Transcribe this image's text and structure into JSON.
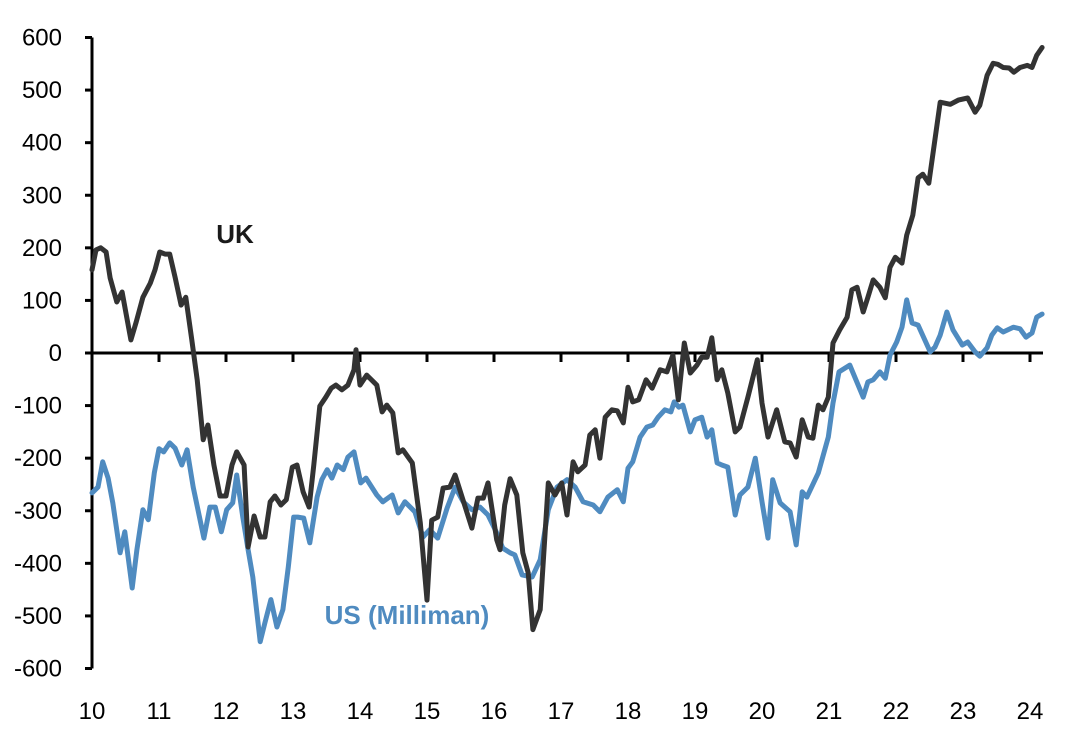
{
  "chart_data": {
    "type": "line",
    "title": "",
    "xlabel": "",
    "ylabel": "",
    "xlim": [
      10,
      24.2
    ],
    "ylim": [
      -600,
      600
    ],
    "grid": false,
    "legend": "inline labels",
    "x_tick_labels": [
      "10",
      "11",
      "12",
      "13",
      "14",
      "15",
      "16",
      "17",
      "18",
      "19",
      "20",
      "21",
      "22",
      "23",
      "24"
    ],
    "y_tick_labels": [
      "600",
      "500",
      "400",
      "300",
      "200",
      "100",
      "0",
      "-100",
      "-200",
      "-300",
      "-400",
      "-500",
      "-600"
    ],
    "series": [
      {
        "name": "UK",
        "color": "#333333",
        "points": [
          [
            10.0,
            158
          ],
          [
            10.06,
            196
          ],
          [
            10.13,
            200
          ],
          [
            10.21,
            192
          ],
          [
            10.27,
            143
          ],
          [
            10.37,
            97
          ],
          [
            10.45,
            116
          ],
          [
            10.58,
            25
          ],
          [
            10.66,
            59
          ],
          [
            10.76,
            106
          ],
          [
            10.87,
            133
          ],
          [
            10.94,
            158
          ],
          [
            11.01,
            192
          ],
          [
            11.09,
            188
          ],
          [
            11.16,
            188
          ],
          [
            11.24,
            144
          ],
          [
            11.33,
            91
          ],
          [
            11.4,
            106
          ],
          [
            11.49,
            25
          ],
          [
            11.57,
            -51
          ],
          [
            11.66,
            -165
          ],
          [
            11.73,
            -137
          ],
          [
            11.82,
            -213
          ],
          [
            11.91,
            -272
          ],
          [
            12.0,
            -272
          ],
          [
            12.09,
            -213
          ],
          [
            12.16,
            -188
          ],
          [
            12.27,
            -213
          ],
          [
            12.33,
            -369
          ],
          [
            12.42,
            -310
          ],
          [
            12.51,
            -350
          ],
          [
            12.58,
            -350
          ],
          [
            12.66,
            -283
          ],
          [
            12.73,
            -272
          ],
          [
            12.82,
            -289
          ],
          [
            12.9,
            -279
          ],
          [
            12.99,
            -217
          ],
          [
            13.06,
            -213
          ],
          [
            13.15,
            -264
          ],
          [
            13.24,
            -293
          ],
          [
            13.31,
            -213
          ],
          [
            13.4,
            -101
          ],
          [
            13.49,
            -84
          ],
          [
            13.57,
            -67
          ],
          [
            13.64,
            -61
          ],
          [
            13.73,
            -70
          ],
          [
            13.82,
            -61
          ],
          [
            13.91,
            -32
          ],
          [
            13.94,
            6
          ],
          [
            14.0,
            -61
          ],
          [
            14.1,
            -42
          ],
          [
            14.25,
            -61
          ],
          [
            14.33,
            -112
          ],
          [
            14.4,
            -99
          ],
          [
            14.49,
            -114
          ],
          [
            14.57,
            -190
          ],
          [
            14.64,
            -184
          ],
          [
            14.78,
            -209
          ],
          [
            14.9,
            -323
          ],
          [
            15.0,
            -470
          ],
          [
            15.07,
            -318
          ],
          [
            15.16,
            -312
          ],
          [
            15.24,
            -257
          ],
          [
            15.34,
            -255
          ],
          [
            15.42,
            -232
          ],
          [
            15.67,
            -333
          ],
          [
            15.76,
            -276
          ],
          [
            15.84,
            -276
          ],
          [
            15.91,
            -247
          ],
          [
            16.04,
            -355
          ],
          [
            16.09,
            -374
          ],
          [
            16.16,
            -289
          ],
          [
            16.24,
            -239
          ],
          [
            16.34,
            -270
          ],
          [
            16.43,
            -380
          ],
          [
            16.51,
            -418
          ],
          [
            16.58,
            -526
          ],
          [
            16.69,
            -488
          ],
          [
            16.81,
            -247
          ],
          [
            16.91,
            -270
          ],
          [
            17.01,
            -247
          ],
          [
            17.09,
            -308
          ],
          [
            17.18,
            -207
          ],
          [
            17.25,
            -226
          ],
          [
            17.36,
            -213
          ],
          [
            17.43,
            -156
          ],
          [
            17.51,
            -146
          ],
          [
            17.58,
            -200
          ],
          [
            17.66,
            -122
          ],
          [
            17.76,
            -108
          ],
          [
            17.84,
            -110
          ],
          [
            17.93,
            -133
          ],
          [
            18.0,
            -65
          ],
          [
            18.07,
            -93
          ],
          [
            18.16,
            -89
          ],
          [
            18.27,
            -51
          ],
          [
            18.36,
            -67
          ],
          [
            18.48,
            -32
          ],
          [
            18.58,
            -36
          ],
          [
            18.67,
            -4
          ],
          [
            18.75,
            -89
          ],
          [
            18.84,
            19
          ],
          [
            18.93,
            -38
          ],
          [
            19.03,
            -23
          ],
          [
            19.1,
            -8
          ],
          [
            19.18,
            -8
          ],
          [
            19.25,
            29
          ],
          [
            19.33,
            -51
          ],
          [
            19.4,
            -32
          ],
          [
            19.49,
            -76
          ],
          [
            19.6,
            -150
          ],
          [
            19.67,
            -141
          ],
          [
            19.79,
            -84
          ],
          [
            19.93,
            -13
          ],
          [
            20.0,
            -95
          ],
          [
            20.09,
            -160
          ],
          [
            20.22,
            -108
          ],
          [
            20.34,
            -169
          ],
          [
            20.42,
            -171
          ],
          [
            20.51,
            -198
          ],
          [
            20.6,
            -127
          ],
          [
            20.69,
            -160
          ],
          [
            20.76,
            -162
          ],
          [
            20.84,
            -99
          ],
          [
            20.91,
            -108
          ],
          [
            20.99,
            -84
          ],
          [
            21.06,
            19
          ],
          [
            21.16,
            44
          ],
          [
            21.27,
            68
          ],
          [
            21.34,
            120
          ],
          [
            21.42,
            125
          ],
          [
            21.51,
            78
          ],
          [
            21.58,
            106
          ],
          [
            21.66,
            139
          ],
          [
            21.76,
            125
          ],
          [
            21.84,
            105
          ],
          [
            21.91,
            163
          ],
          [
            21.99,
            182
          ],
          [
            22.09,
            171
          ],
          [
            22.16,
            224
          ],
          [
            22.25,
            262
          ],
          [
            22.33,
            333
          ],
          [
            22.4,
            340
          ],
          [
            22.49,
            323
          ],
          [
            22.66,
            477
          ],
          [
            22.81,
            473
          ],
          [
            22.93,
            481
          ],
          [
            23.07,
            485
          ],
          [
            23.18,
            458
          ],
          [
            23.25,
            471
          ],
          [
            23.36,
            528
          ],
          [
            23.45,
            551
          ],
          [
            23.52,
            549
          ],
          [
            23.6,
            543
          ],
          [
            23.69,
            542
          ],
          [
            23.76,
            534
          ],
          [
            23.85,
            543
          ],
          [
            23.96,
            547
          ],
          [
            24.03,
            543
          ],
          [
            24.1,
            566
          ],
          [
            24.18,
            581
          ]
        ]
      },
      {
        "name": "US (Milliman)",
        "color": "#4f8bc0",
        "points": [
          [
            10.0,
            -266
          ],
          [
            10.09,
            -255
          ],
          [
            10.16,
            -207
          ],
          [
            10.24,
            -238
          ],
          [
            10.31,
            -285
          ],
          [
            10.42,
            -380
          ],
          [
            10.49,
            -340
          ],
          [
            10.6,
            -447
          ],
          [
            10.67,
            -374
          ],
          [
            10.76,
            -298
          ],
          [
            10.84,
            -317
          ],
          [
            10.93,
            -228
          ],
          [
            11.0,
            -182
          ],
          [
            11.07,
            -188
          ],
          [
            11.16,
            -171
          ],
          [
            11.24,
            -181
          ],
          [
            11.34,
            -213
          ],
          [
            11.42,
            -184
          ],
          [
            11.51,
            -255
          ],
          [
            11.67,
            -352
          ],
          [
            11.76,
            -293
          ],
          [
            11.84,
            -293
          ],
          [
            11.93,
            -340
          ],
          [
            12.01,
            -298
          ],
          [
            12.1,
            -285
          ],
          [
            12.16,
            -232
          ],
          [
            12.25,
            -312
          ],
          [
            12.33,
            -374
          ],
          [
            12.4,
            -426
          ],
          [
            12.51,
            -549
          ],
          [
            12.58,
            -513
          ],
          [
            12.67,
            -469
          ],
          [
            12.76,
            -521
          ],
          [
            12.85,
            -488
          ],
          [
            12.93,
            -407
          ],
          [
            13.01,
            -312
          ],
          [
            13.07,
            -312
          ],
          [
            13.16,
            -314
          ],
          [
            13.25,
            -361
          ],
          [
            13.36,
            -274
          ],
          [
            13.43,
            -241
          ],
          [
            13.51,
            -222
          ],
          [
            13.58,
            -238
          ],
          [
            13.66,
            -213
          ],
          [
            13.75,
            -222
          ],
          [
            13.82,
            -198
          ],
          [
            13.91,
            -188
          ],
          [
            14.01,
            -247
          ],
          [
            14.09,
            -238
          ],
          [
            14.25,
            -270
          ],
          [
            14.34,
            -283
          ],
          [
            14.48,
            -270
          ],
          [
            14.57,
            -304
          ],
          [
            14.67,
            -283
          ],
          [
            14.82,
            -302
          ],
          [
            14.94,
            -350
          ],
          [
            15.04,
            -336
          ],
          [
            15.16,
            -352
          ],
          [
            15.3,
            -295
          ],
          [
            15.42,
            -255
          ],
          [
            15.54,
            -283
          ],
          [
            15.67,
            -298
          ],
          [
            15.79,
            -293
          ],
          [
            15.91,
            -308
          ],
          [
            16.04,
            -342
          ],
          [
            16.13,
            -371
          ],
          [
            16.24,
            -380
          ],
          [
            16.31,
            -384
          ],
          [
            16.42,
            -422
          ],
          [
            16.57,
            -426
          ],
          [
            16.69,
            -393
          ],
          [
            16.81,
            -298
          ],
          [
            16.94,
            -255
          ],
          [
            17.09,
            -241
          ],
          [
            17.21,
            -255
          ],
          [
            17.33,
            -283
          ],
          [
            17.48,
            -289
          ],
          [
            17.58,
            -302
          ],
          [
            17.7,
            -274
          ],
          [
            17.84,
            -260
          ],
          [
            17.93,
            -283
          ],
          [
            18.0,
            -219
          ],
          [
            18.07,
            -207
          ],
          [
            18.18,
            -160
          ],
          [
            18.28,
            -141
          ],
          [
            18.37,
            -137
          ],
          [
            18.45,
            -122
          ],
          [
            18.55,
            -108
          ],
          [
            18.64,
            -112
          ],
          [
            18.69,
            -93
          ],
          [
            18.76,
            -103
          ],
          [
            18.82,
            -99
          ],
          [
            18.93,
            -150
          ],
          [
            19.0,
            -127
          ],
          [
            19.1,
            -122
          ],
          [
            19.18,
            -160
          ],
          [
            19.25,
            -146
          ],
          [
            19.33,
            -209
          ],
          [
            19.4,
            -213
          ],
          [
            19.49,
            -217
          ],
          [
            19.6,
            -308
          ],
          [
            19.67,
            -270
          ],
          [
            19.79,
            -255
          ],
          [
            19.9,
            -200
          ],
          [
            20.0,
            -283
          ],
          [
            20.09,
            -352
          ],
          [
            20.16,
            -241
          ],
          [
            20.27,
            -285
          ],
          [
            20.42,
            -302
          ],
          [
            20.51,
            -365
          ],
          [
            20.6,
            -264
          ],
          [
            20.67,
            -274
          ],
          [
            20.84,
            -228
          ],
          [
            20.99,
            -160
          ],
          [
            21.06,
            -95
          ],
          [
            21.15,
            -36
          ],
          [
            21.31,
            -23
          ],
          [
            21.51,
            -84
          ],
          [
            21.58,
            -55
          ],
          [
            21.66,
            -51
          ],
          [
            21.76,
            -36
          ],
          [
            21.84,
            -48
          ],
          [
            21.91,
            -4
          ],
          [
            22.01,
            21
          ],
          [
            22.09,
            49
          ],
          [
            22.16,
            101
          ],
          [
            22.24,
            57
          ],
          [
            22.33,
            53
          ],
          [
            22.51,
            2
          ],
          [
            22.58,
            11
          ],
          [
            22.66,
            34
          ],
          [
            22.76,
            78
          ],
          [
            22.85,
            44
          ],
          [
            22.99,
            15
          ],
          [
            23.07,
            21
          ],
          [
            23.18,
            2
          ],
          [
            23.25,
            -6
          ],
          [
            23.36,
            10
          ],
          [
            23.43,
            34
          ],
          [
            23.51,
            48
          ],
          [
            23.6,
            40
          ],
          [
            23.75,
            49
          ],
          [
            23.85,
            46
          ],
          [
            23.94,
            30
          ],
          [
            24.03,
            38
          ],
          [
            24.1,
            68
          ],
          [
            24.18,
            74
          ]
        ]
      }
    ]
  }
}
